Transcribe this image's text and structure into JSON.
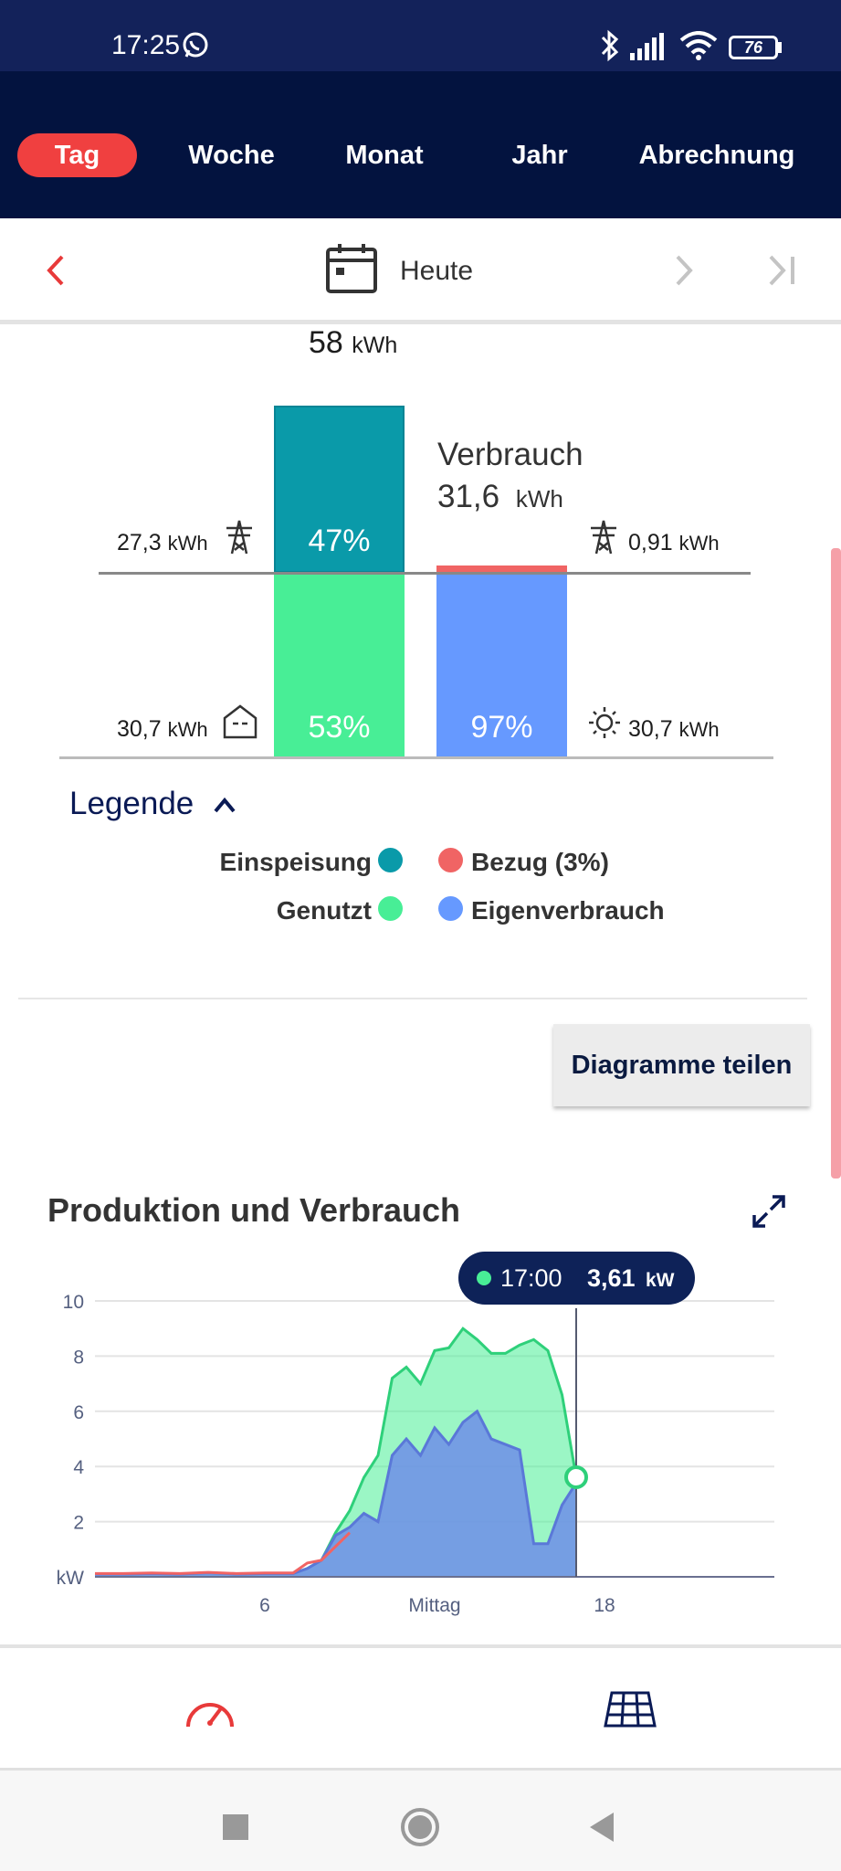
{
  "status_bar": {
    "time": "17:25",
    "battery": "76"
  },
  "tabs": [
    {
      "label": "Tag",
      "active": true
    },
    {
      "label": "Woche",
      "active": false
    },
    {
      "label": "Monat",
      "active": false
    },
    {
      "label": "Jahr",
      "active": false
    },
    {
      "label": "Abrechnung",
      "active": false
    }
  ],
  "date_nav": {
    "label": "Heute"
  },
  "production": {
    "total_value": "58",
    "total_unit": "kWh",
    "feed_in_value": "27,3",
    "feed_in_unit": "kWh",
    "feed_in_percent": "47%",
    "used_value": "30,7",
    "used_unit": "kWh",
    "used_percent": "53%"
  },
  "consumption": {
    "title": "Verbrauch",
    "total_value": "31,6",
    "total_unit": "kWh",
    "grid_value": "0,91",
    "grid_unit": "kWh",
    "self_value": "30,7",
    "self_unit": "kWh",
    "self_percent": "97%",
    "grid_share": 0.03
  },
  "legend": {
    "title": "Legende",
    "items": [
      {
        "label": "Einspeisung",
        "color": "#0a9aa9"
      },
      {
        "label": "Bezug (3%)",
        "color": "#f06464"
      },
      {
        "label": "Genutzt",
        "color": "#48ee96"
      },
      {
        "label": "Eigenverbrauch",
        "color": "#6699ff"
      }
    ]
  },
  "share_button": {
    "label": "Diagramme teilen"
  },
  "chart_section": {
    "title": "Produktion und Verbrauch"
  },
  "chart_data": {
    "type": "area",
    "ylabel": "kW",
    "ylim": [
      0,
      10
    ],
    "y_ticks": [
      "10",
      "8",
      "6",
      "4",
      "2"
    ],
    "x_ticks": [
      {
        "label": "6",
        "hour": 6
      },
      {
        "label": "Mittag",
        "hour": 12
      },
      {
        "label": "18",
        "hour": 18
      }
    ],
    "xlim": [
      0,
      24
    ],
    "tooltip": {
      "time": "17:00",
      "value": "3,61",
      "unit": "kW"
    },
    "series": [
      {
        "name": "Genutzt",
        "color": "#48ee96",
        "points": [
          [
            0,
            0.1
          ],
          [
            1,
            0.1
          ],
          [
            2,
            0.12
          ],
          [
            3,
            0.1
          ],
          [
            4,
            0.15
          ],
          [
            5,
            0.1
          ],
          [
            6,
            0.12
          ],
          [
            7,
            0.12
          ],
          [
            7.5,
            0.3
          ],
          [
            8,
            0.6
          ],
          [
            8.5,
            1.6
          ],
          [
            9,
            2.4
          ],
          [
            9.5,
            3.6
          ],
          [
            10,
            4.4
          ],
          [
            10.5,
            7.2
          ],
          [
            11,
            7.6
          ],
          [
            11.5,
            7.0
          ],
          [
            12,
            8.2
          ],
          [
            12.5,
            8.3
          ],
          [
            13,
            9.0
          ],
          [
            13.5,
            8.6
          ],
          [
            14,
            8.1
          ],
          [
            14.5,
            8.1
          ],
          [
            15,
            8.4
          ],
          [
            15.5,
            8.6
          ],
          [
            16,
            8.2
          ],
          [
            16.5,
            6.6
          ],
          [
            17,
            3.61
          ]
        ]
      },
      {
        "name": "Eigenverbrauch",
        "color": "#6f8ee8",
        "points": [
          [
            0,
            0.1
          ],
          [
            1,
            0.1
          ],
          [
            2,
            0.12
          ],
          [
            3,
            0.1
          ],
          [
            4,
            0.15
          ],
          [
            5,
            0.1
          ],
          [
            6,
            0.12
          ],
          [
            7,
            0.12
          ],
          [
            7.5,
            0.3
          ],
          [
            8,
            0.6
          ],
          [
            8.5,
            1.5
          ],
          [
            9,
            1.8
          ],
          [
            9.5,
            2.3
          ],
          [
            10,
            2.0
          ],
          [
            10.5,
            4.4
          ],
          [
            11,
            5.0
          ],
          [
            11.5,
            4.4
          ],
          [
            12,
            5.4
          ],
          [
            12.5,
            4.8
          ],
          [
            13,
            5.6
          ],
          [
            13.5,
            6.0
          ],
          [
            14,
            5.0
          ],
          [
            14.5,
            4.8
          ],
          [
            15,
            4.6
          ],
          [
            15.5,
            1.2
          ],
          [
            16,
            1.2
          ],
          [
            16.5,
            2.6
          ],
          [
            17,
            3.4
          ]
        ]
      },
      {
        "name": "Bezug",
        "color": "#f06464",
        "points": [
          [
            0,
            0.12
          ],
          [
            1,
            0.12
          ],
          [
            2,
            0.14
          ],
          [
            3,
            0.12
          ],
          [
            4,
            0.16
          ],
          [
            5,
            0.12
          ],
          [
            6,
            0.14
          ],
          [
            7,
            0.14
          ],
          [
            7.5,
            0.5
          ],
          [
            8,
            0.6
          ],
          [
            9,
            1.6
          ]
        ]
      }
    ]
  }
}
